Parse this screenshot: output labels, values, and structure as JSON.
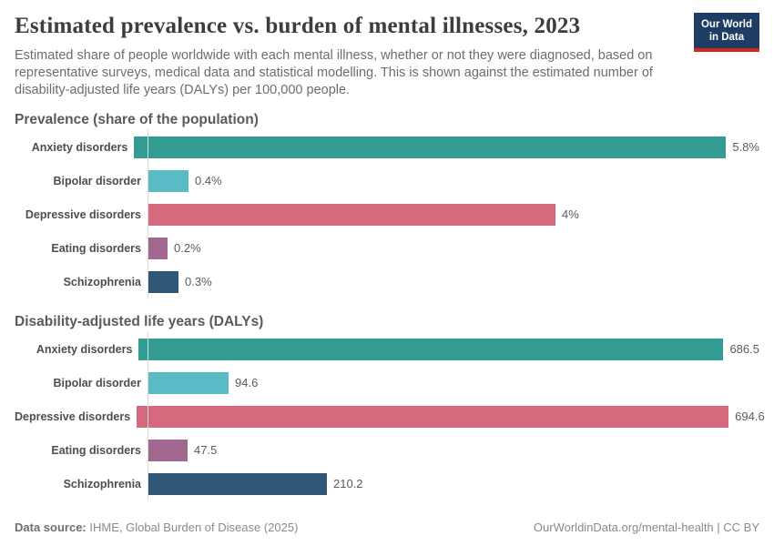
{
  "header": {
    "title": "Estimated prevalence vs. burden of mental illnesses, 2023",
    "subtitle": "Estimated share of people worldwide with each mental illness, whether or not they were diagnosed, based on representative surveys, medical data and statistical modelling. This is shown against the estimated number of disability-adjusted life years (DALYs) per 100,000 people.",
    "logo": {
      "line1": "Our World",
      "line2": "in Data",
      "background_color": "#1d3d63",
      "accent_color": "#cf2a1d"
    }
  },
  "chart_data": [
    {
      "type": "bar",
      "orientation": "horizontal",
      "title": "Prevalence (share of the population)",
      "categories": [
        "Anxiety disorders",
        "Bipolar disorder",
        "Depressive disorders",
        "Eating disorders",
        "Schizophrenia"
      ],
      "values": [
        5.8,
        0.4,
        4,
        0.2,
        0.3
      ],
      "value_labels": [
        "5.8%",
        "0.4%",
        "4%",
        "0.2%",
        "0.3%"
      ],
      "unit": "%",
      "xlim": [
        0,
        5.8
      ],
      "grid": false,
      "legend": "none",
      "bar_colors": [
        "#339c93",
        "#58bbc5",
        "#d5697e",
        "#a1678f",
        "#2f5777"
      ]
    },
    {
      "type": "bar",
      "orientation": "horizontal",
      "title": "Disability-adjusted life years (DALYs)",
      "categories": [
        "Anxiety disorders",
        "Bipolar disorder",
        "Depressive disorders",
        "Eating disorders",
        "Schizophrenia"
      ],
      "values": [
        686.5,
        94.6,
        694.6,
        47.5,
        210.2
      ],
      "value_labels": [
        "686.5",
        "94.6",
        "694.6",
        "47.5",
        "210.2"
      ],
      "unit": "DALYs per 100,000 people",
      "xlim": [
        0,
        694.6
      ],
      "grid": false,
      "legend": "none",
      "bar_colors": [
        "#339c93",
        "#58bbc5",
        "#d5697e",
        "#a1678f",
        "#2f5777"
      ]
    }
  ],
  "footer": {
    "source_label": "Data source:",
    "source_text": " IHME, Global Burden of Disease (2025)",
    "credit": "OurWorldinData.org/mental-health | CC BY"
  }
}
